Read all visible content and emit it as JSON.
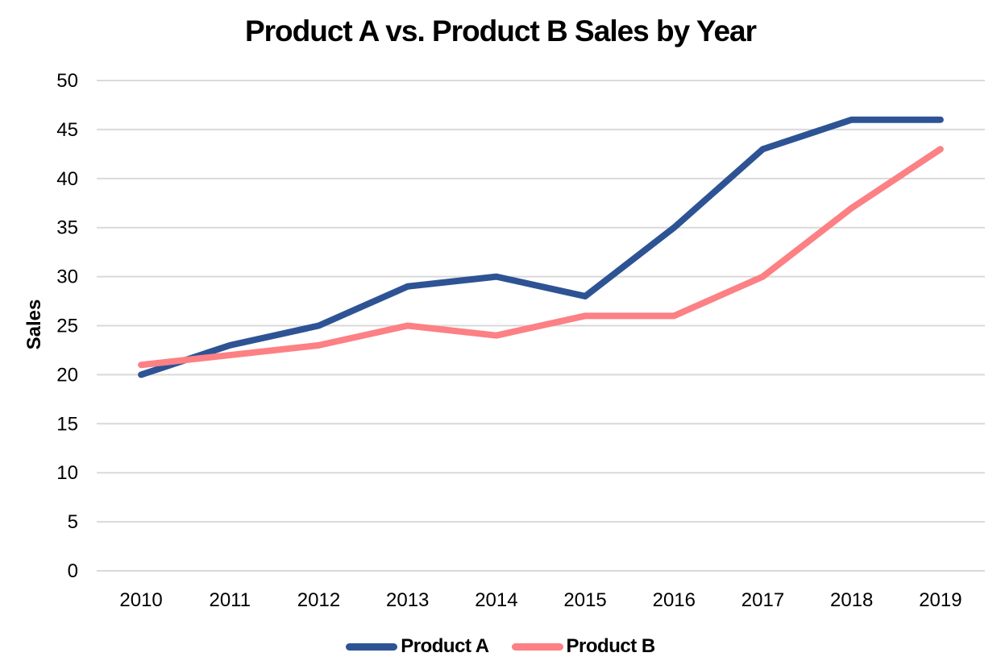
{
  "chart_data": {
    "type": "line",
    "title": "Product A vs. Product B Sales by Year",
    "xlabel": "",
    "ylabel": "Sales",
    "categories": [
      "2010",
      "2011",
      "2012",
      "2013",
      "2014",
      "2015",
      "2016",
      "2017",
      "2018",
      "2019"
    ],
    "series": [
      {
        "name": "Product A",
        "color": "#2E5395",
        "values": [
          20,
          23,
          25,
          29,
          30,
          28,
          35,
          43,
          46,
          46
        ]
      },
      {
        "name": "Product B",
        "color": "#FC8084",
        "values": [
          21,
          22,
          23,
          25,
          24,
          26,
          26,
          30,
          37,
          43
        ]
      }
    ],
    "ylim": [
      0,
      50
    ],
    "ytick_step": 5,
    "grid": "horizontal",
    "gridline_color": "#D9D9D9",
    "legend_position": "bottom",
    "text_color": "#000000",
    "background_color": "#FFFFFF"
  }
}
